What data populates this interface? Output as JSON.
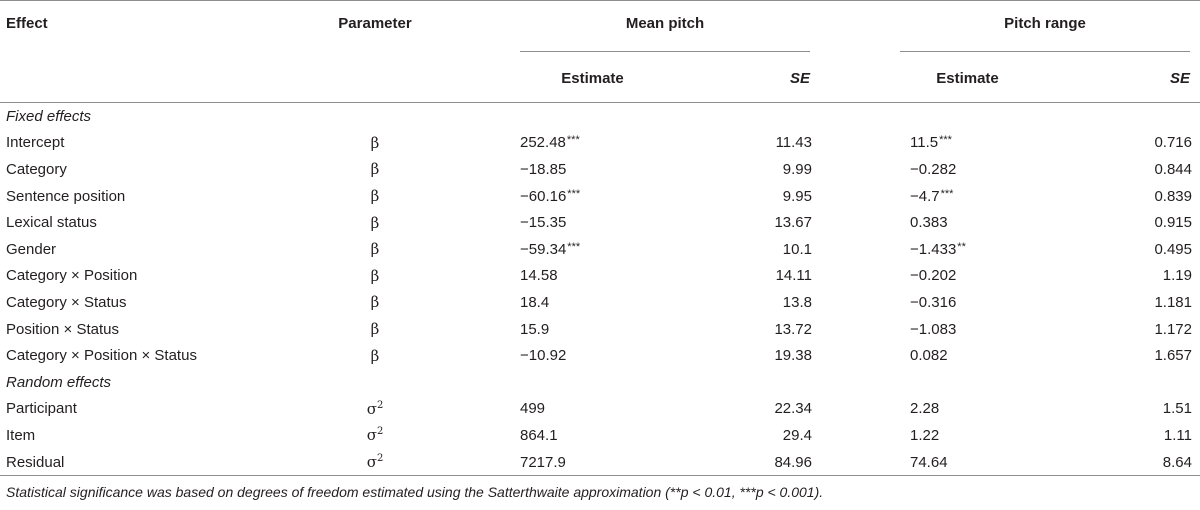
{
  "header": {
    "effect": "Effect",
    "parameter": "Parameter",
    "mean_pitch": "Mean pitch",
    "pitch_range": "Pitch range",
    "estimate_1": "Estimate",
    "se_1": "SE",
    "estimate_2": "Estimate",
    "se_2": "SE"
  },
  "sections": {
    "fixed": "Fixed effects",
    "random": "Random effects"
  },
  "rows": [
    {
      "effect": "Intercept",
      "param": "β",
      "param_sup": "",
      "mean_est": "252.48",
      "mean_sig": "***",
      "mean_se": "11.43",
      "range_est": "11.5",
      "range_sig": "***",
      "range_se": "0.716"
    },
    {
      "effect": "Category",
      "param": "β",
      "param_sup": "",
      "mean_est": "−18.85",
      "mean_sig": "",
      "mean_se": "9.99",
      "range_est": "−0.282",
      "range_sig": "",
      "range_se": "0.844"
    },
    {
      "effect": "Sentence position",
      "param": "β",
      "param_sup": "",
      "mean_est": "−60.16",
      "mean_sig": "***",
      "mean_se": "9.95",
      "range_est": "−4.7",
      "range_sig": "***",
      "range_se": "0.839"
    },
    {
      "effect": "Lexical status",
      "param": "β",
      "param_sup": "",
      "mean_est": "−15.35",
      "mean_sig": "",
      "mean_se": "13.67",
      "range_est": "0.383",
      "range_sig": "",
      "range_se": "0.915"
    },
    {
      "effect": "Gender",
      "param": "β",
      "param_sup": "",
      "mean_est": "−59.34",
      "mean_sig": "***",
      "mean_se": "10.1",
      "range_est": "−1.433",
      "range_sig": "**",
      "range_se": "0.495"
    },
    {
      "effect": "Category × Position",
      "param": "β",
      "param_sup": "",
      "mean_est": "14.58",
      "mean_sig": "",
      "mean_se": "14.11",
      "range_est": "−0.202",
      "range_sig": "",
      "range_se": "1.19"
    },
    {
      "effect": "Category × Status",
      "param": "β",
      "param_sup": "",
      "mean_est": "18.4",
      "mean_sig": "",
      "mean_se": "13.8",
      "range_est": "−0.316",
      "range_sig": "",
      "range_se": "1.181"
    },
    {
      "effect": "Position × Status",
      "param": "β",
      "param_sup": "",
      "mean_est": "15.9",
      "mean_sig": "",
      "mean_se": "13.72",
      "range_est": "−1.083",
      "range_sig": "",
      "range_se": "1.172"
    },
    {
      "effect": "Category × Position × Status",
      "param": "β",
      "param_sup": "",
      "mean_est": "−10.92",
      "mean_sig": "",
      "mean_se": "19.38",
      "range_est": "0.082",
      "range_sig": "",
      "range_se": "1.657"
    }
  ],
  "random_rows": [
    {
      "effect": "Participant",
      "param": "σ",
      "param_sup": "2",
      "mean_est": "499",
      "mean_se": "22.34",
      "range_est": "2.28",
      "range_se": "1.51"
    },
    {
      "effect": "Item",
      "param": "σ",
      "param_sup": "2",
      "mean_est": "864.1",
      "mean_se": "29.4",
      "range_est": "1.22",
      "range_se": "1.11"
    },
    {
      "effect": "Residual",
      "param": "σ",
      "param_sup": "2",
      "mean_est": "7217.9",
      "mean_se": "84.96",
      "range_est": "74.64",
      "range_se": "8.64"
    }
  ],
  "footnote": "Statistical significance was based on degrees of freedom estimated using the Satterthwaite approximation (**p < 0.01, ***p < 0.001)."
}
